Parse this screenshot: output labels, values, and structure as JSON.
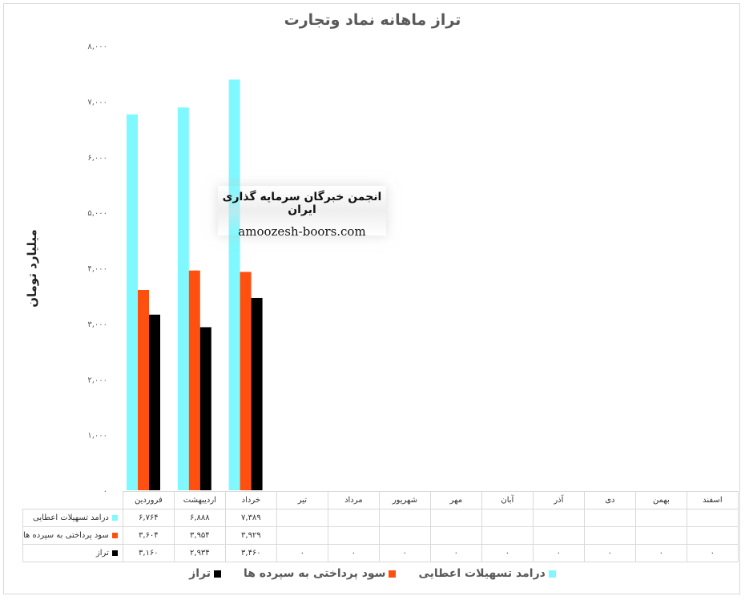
{
  "title": "تراز ماهانه نماد وتجارت",
  "watermark": {
    "line1": "انجمن خبرگان سرمایه گذاری ایران",
    "line2": "amoozesh-boors.com"
  },
  "chart_data": {
    "type": "bar",
    "title": "تراز ماهانه نماد وتجارت",
    "ylabel": "میلیارد تومان",
    "xlabel": "",
    "ylim": [
      0,
      8000
    ],
    "yticks": [
      0,
      1000,
      2000,
      3000,
      4000,
      5000,
      6000,
      7000,
      8000
    ],
    "ytick_labels": [
      "۰",
      "۱,۰۰۰",
      "۲,۰۰۰",
      "۳,۰۰۰",
      "۴,۰۰۰",
      "۵,۰۰۰",
      "۶,۰۰۰",
      "۷,۰۰۰",
      "۸,۰۰۰"
    ],
    "categories": [
      "فروردین",
      "اردیبهشت",
      "خرداد",
      "تیر",
      "مرداد",
      "شهریور",
      "مهر",
      "آبان",
      "آذر",
      "دی",
      "بهمن",
      "اسفند"
    ],
    "grid": false,
    "legend_position": "bottom",
    "series": [
      {
        "name": "درامد تسهیلات اعطایی",
        "color": "#7ff9ff",
        "values": [
          6764,
          6888,
          7389,
          null,
          null,
          null,
          null,
          null,
          null,
          null,
          null,
          null
        ],
        "labels": [
          "۶,۷۶۴",
          "۶,۸۸۸",
          "۷,۳۸۹",
          "",
          "",
          "",
          "",
          "",
          "",
          "",
          "",
          ""
        ]
      },
      {
        "name": "سود پرداختی به سپرده ها",
        "color": "#ff5010",
        "values": [
          3604,
          3954,
          3929,
          null,
          null,
          null,
          null,
          null,
          null,
          null,
          null,
          null
        ],
        "labels": [
          "۳,۶۰۴",
          "۳,۹۵۴",
          "۳,۹۲۹",
          "",
          "",
          "",
          "",
          "",
          "",
          "",
          "",
          ""
        ]
      },
      {
        "name": "تراز",
        "color": "#000000",
        "values": [
          3160,
          2934,
          3460,
          0,
          0,
          0,
          0,
          0,
          0,
          0,
          0,
          0
        ],
        "labels": [
          "۳,۱۶۰",
          "۲,۹۳۴",
          "۳,۴۶۰",
          "۰",
          "۰",
          "۰",
          "۰",
          "۰",
          "۰",
          "۰",
          "۰",
          "۰"
        ]
      }
    ]
  }
}
